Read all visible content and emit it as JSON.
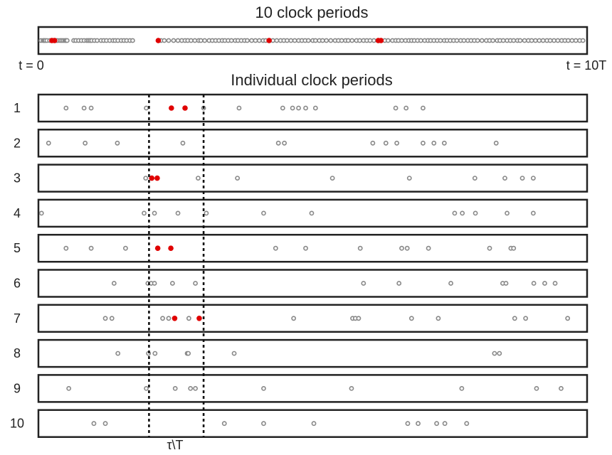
{
  "chart_data": {
    "type": "scatter",
    "top_panel": {
      "title": "10 clock periods",
      "left_label": "t = 0",
      "right_label": "t = 10T",
      "x_range": [
        0,
        10
      ],
      "open_points": [
        0.02,
        0.06,
        0.08,
        0.1,
        0.13,
        0.18,
        0.22,
        0.26,
        0.3,
        0.33,
        0.37,
        0.4,
        0.43,
        0.46,
        0.48,
        0.5,
        0.62,
        0.66,
        0.71,
        0.76,
        0.81,
        0.86,
        0.89,
        0.92,
        0.95,
        1.0,
        1.05,
        1.12,
        1.17,
        1.22,
        1.28,
        1.34,
        1.38,
        1.43,
        1.49,
        1.54,
        1.59,
        1.65,
        1.7,
        2.22,
        2.28,
        2.36,
        2.45,
        2.53,
        2.6,
        2.66,
        2.71,
        2.77,
        2.84,
        2.91,
        2.95,
        3.02,
        3.1,
        3.16,
        3.22,
        3.28,
        3.34,
        3.39,
        3.45,
        3.51,
        3.58,
        3.63,
        3.69,
        3.75,
        3.8,
        3.88,
        3.95,
        4.02,
        4.09,
        4.14,
        4.21,
        4.27,
        4.34,
        4.41,
        4.47,
        4.53,
        4.6,
        4.67,
        4.74,
        4.8,
        4.86,
        4.92,
        5.0,
        5.05,
        5.12,
        5.18,
        5.25,
        5.33,
        5.41,
        5.47,
        5.53,
        5.6,
        5.65,
        5.72,
        5.8,
        5.86,
        5.93,
        5.99,
        6.05,
        6.12,
        6.19,
        6.26,
        6.32,
        6.38,
        6.46,
        6.52,
        6.57,
        6.63,
        6.7,
        6.76,
        6.81,
        6.86,
        6.92,
        6.98,
        7.05,
        7.11,
        7.16,
        7.22,
        7.28,
        7.34,
        7.41,
        7.46,
        7.52,
        7.58,
        7.64,
        7.71,
        7.77,
        7.84,
        7.9,
        7.96,
        8.02,
        8.1,
        8.18,
        8.24,
        8.3,
        8.38,
        8.43,
        8.49,
        8.56,
        8.62,
        8.68,
        8.75,
        8.8,
        8.88,
        8.95,
        9.01,
        9.08,
        9.15,
        9.22,
        9.29,
        9.35,
        9.42,
        9.49,
        9.56,
        9.62,
        9.68,
        9.75,
        9.82,
        9.89,
        9.95
      ],
      "red_points": [
        0.22,
        0.27,
        2.17,
        4.2,
        6.2,
        6.25
      ]
    },
    "bottom_panel": {
      "title": "Individual clock periods",
      "xlabel": "τ\\T",
      "x_range": [
        0,
        1
      ],
      "window": [
        0.2,
        0.3
      ],
      "row_labels": [
        "1",
        "2",
        "3",
        "4",
        "5",
        "6",
        "7",
        "8",
        "9",
        "10"
      ],
      "rows": [
        {
          "open": [
            0.048,
            0.081,
            0.094,
            0.195,
            0.3,
            0.365,
            0.445,
            0.463,
            0.474,
            0.487,
            0.505,
            0.652,
            0.671,
            0.702
          ],
          "red": [
            0.241,
            0.266
          ]
        },
        {
          "open": [
            0.016,
            0.083,
            0.142,
            0.262,
            0.437,
            0.448,
            0.61,
            0.634,
            0.654,
            0.702,
            0.722,
            0.741,
            0.836
          ],
          "red": []
        },
        {
          "open": [
            0.194,
            0.29,
            0.362,
            0.536,
            0.677,
            0.797,
            0.852,
            0.884,
            0.904
          ],
          "red": [
            0.205,
            0.215
          ]
        },
        {
          "open": [
            0.003,
            0.191,
            0.21,
            0.253,
            0.305,
            0.41,
            0.498,
            0.76,
            0.774,
            0.798,
            0.856,
            0.904
          ],
          "red": []
        },
        {
          "open": [
            0.048,
            0.094,
            0.157,
            0.432,
            0.487,
            0.587,
            0.663,
            0.673,
            0.712,
            0.824,
            0.863,
            0.868
          ],
          "red": [
            0.216,
            0.24
          ]
        },
        {
          "open": [
            0.136,
            0.198,
            0.204,
            0.21,
            0.243,
            0.285,
            0.593,
            0.658,
            0.753,
            0.848,
            0.854,
            0.905,
            0.925,
            0.944
          ],
          "red": []
        },
        {
          "open": [
            0.12,
            0.132,
            0.225,
            0.236,
            0.273,
            0.465,
            0.573,
            0.578,
            0.584,
            0.681,
            0.73,
            0.87,
            0.89,
            0.967
          ],
          "red": [
            0.247,
            0.292
          ]
        },
        {
          "open": [
            0.143,
            0.199,
            0.211,
            0.27,
            0.272,
            0.356,
            0.833,
            0.842
          ],
          "red": []
        },
        {
          "open": [
            0.053,
            0.195,
            0.248,
            0.276,
            0.285,
            0.41,
            0.571,
            0.773,
            0.91,
            0.955
          ],
          "red": []
        },
        {
          "open": [
            0.099,
            0.12,
            0.338,
            0.41,
            0.502,
            0.674,
            0.693,
            0.727,
            0.742,
            0.782
          ],
          "red": []
        }
      ]
    }
  }
}
